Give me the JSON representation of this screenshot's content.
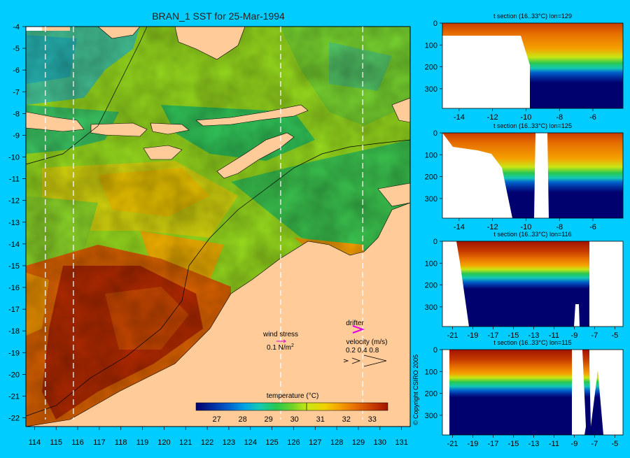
{
  "title": "BRAN_1 SST for 25-Mar-1994",
  "map": {
    "lon_ticks": [
      "114",
      "115",
      "116",
      "117",
      "118",
      "119",
      "120",
      "121",
      "122",
      "123",
      "124",
      "125",
      "126",
      "127",
      "128",
      "129",
      "130",
      "131"
    ],
    "lat_ticks": [
      "-4",
      "-5",
      "-6",
      "-7",
      "-8",
      "-9",
      "-10",
      "-11",
      "-12",
      "-13",
      "-14",
      "-15",
      "-16",
      "-17",
      "-18",
      "-19",
      "-20",
      "-21",
      "-22"
    ],
    "section_lines": [
      "114.5",
      "115.8",
      "125.4",
      "129.2"
    ]
  },
  "legend": {
    "wind_stress_label": "wind stress",
    "wind_stress_value": "0.1 N/m",
    "wind_stress_sup": "2",
    "drifter_label": "drifter",
    "velocity_label": "velocity (m/s)",
    "velocity_values": "0.2 0.4 0.8"
  },
  "colorbar": {
    "title": "temperature (°C)",
    "ticks": [
      "27",
      "28",
      "29",
      "30",
      "31",
      "32",
      "33"
    ],
    "colors": [
      "#00006e",
      "#002a9a",
      "#0060cc",
      "#00a0e6",
      "#14c8b4",
      "#28c850",
      "#6ed228",
      "#c8e614",
      "#f0d200",
      "#f5a000",
      "#e66e00",
      "#c83c00",
      "#a01400"
    ]
  },
  "copyright": "© Copyright CSIRO 2005",
  "sections": [
    {
      "title": "t section (16..33°C) lon=129",
      "x_ticks": [
        "-14",
        "-12",
        "-10",
        "-8",
        "-6"
      ],
      "y_ticks": [
        "0",
        "100",
        "200",
        "300"
      ]
    },
    {
      "title": "t section (16..33°C) lon=125",
      "x_ticks": [
        "-14",
        "-12",
        "-10",
        "-8",
        "-6"
      ],
      "y_ticks": [
        "0",
        "100",
        "200",
        "300"
      ]
    },
    {
      "title": "t section (16..33°C) lon=116",
      "x_ticks": [
        "-21",
        "-19",
        "-17",
        "-15",
        "-13",
        "-11",
        "-9",
        "-7",
        "-5"
      ],
      "y_ticks": [
        "0",
        "100",
        "200",
        "300"
      ]
    },
    {
      "title": "t section (16..33°C) lon=115",
      "x_ticks": [
        "-21",
        "-19",
        "-17",
        "-15",
        "-13",
        "-11",
        "-9",
        "-7",
        "-5"
      ],
      "y_ticks": [
        "0",
        "100",
        "200",
        "300"
      ]
    }
  ]
}
